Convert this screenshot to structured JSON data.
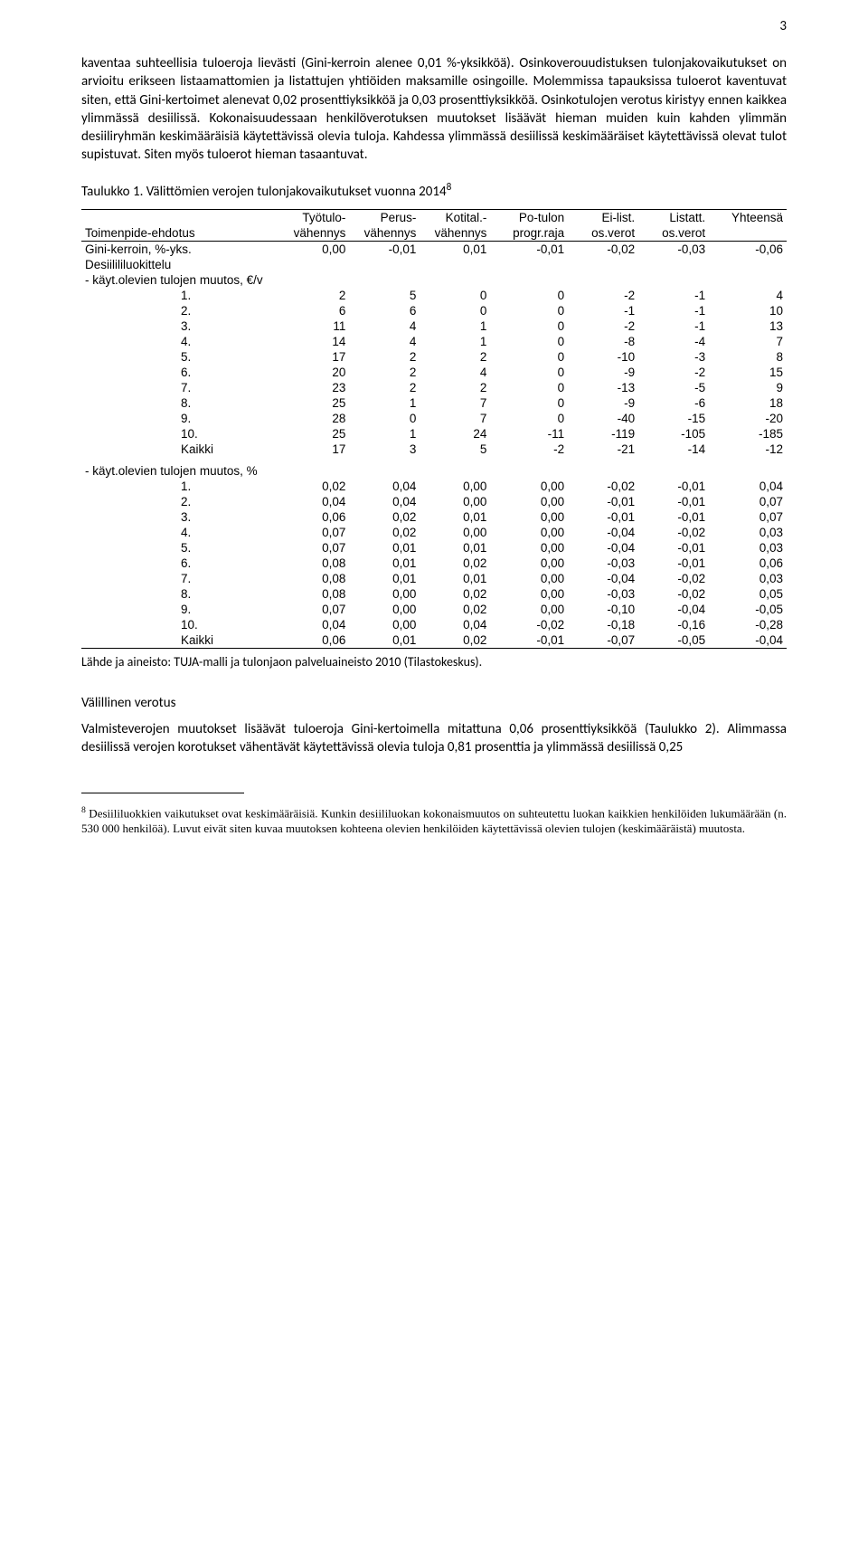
{
  "page_number": "3",
  "para1": "kaventaa suhteellisia tuloeroja lievästi (Gini-kerroin alenee 0,01 %-yksikköä). Osinkoverouudistuksen tulonjakovaikutukset on arvioitu erikseen listaamattomien ja listattujen yhtiöiden maksamille osingoille. Molemmissa tapauksissa tuloerot kaventuvat siten, että Gini-kertoimet alenevat 0,02 prosenttiyksikköä ja 0,03 prosenttiyksikköä. Osinkotulojen verotus kiristyy ennen kaikkea ylimmässä desiilissä. Kokonaisuudessaan henkilöverotuksen muutokset lisäävät hieman muiden kuin kahden ylimmän desiiliryhmän keskimääräisiä käytettävissä olevia tuloja. Kahdessa ylimmässä desiilissä keskimääräiset käytettävissä olevat tulot supistuvat. Siten myös tuloerot hieman tasaantuvat.",
  "table1_title": "Taulukko 1. Välittömien verojen tulonjakovaikutukset vuonna 2014",
  "table1_title_sup": "8",
  "header": {
    "row1": [
      "",
      "Työtulo-",
      "Perus-",
      "Kotital.-",
      "Po-tulon",
      "Ei-list.",
      "Listatt.",
      "Yhteensä"
    ],
    "row2": [
      "Toimenpide-ehdotus",
      "vähennys",
      "vähennys",
      "vähennys",
      "progr.raja",
      "os.verot",
      "os.verot",
      ""
    ]
  },
  "gini_row": [
    "Gini-kerroin, %-yks.",
    "0,00",
    "-0,01",
    "0,01",
    "-0,01",
    "-0,02",
    "-0,03",
    "-0,06"
  ],
  "section_a_label": "Desiilililuokittelu",
  "section_a_sub": " - käyt.olevien tulojen muutos, €/v",
  "rows_a": [
    [
      "1.",
      "2",
      "5",
      "0",
      "0",
      "-2",
      "-1",
      "4"
    ],
    [
      "2.",
      "6",
      "6",
      "0",
      "0",
      "-1",
      "-1",
      "10"
    ],
    [
      "3.",
      "11",
      "4",
      "1",
      "0",
      "-2",
      "-1",
      "13"
    ],
    [
      "4.",
      "14",
      "4",
      "1",
      "0",
      "-8",
      "-4",
      "7"
    ],
    [
      "5.",
      "17",
      "2",
      "2",
      "0",
      "-10",
      "-3",
      "8"
    ],
    [
      "6.",
      "20",
      "2",
      "4",
      "0",
      "-9",
      "-2",
      "15"
    ],
    [
      "7.",
      "23",
      "2",
      "2",
      "0",
      "-13",
      "-5",
      "9"
    ],
    [
      "8.",
      "25",
      "1",
      "7",
      "0",
      "-9",
      "-6",
      "18"
    ],
    [
      "9.",
      "28",
      "0",
      "7",
      "0",
      "-40",
      "-15",
      "-20"
    ],
    [
      "10.",
      "25",
      "1",
      "24",
      "-11",
      "-119",
      "-105",
      "-185"
    ],
    [
      "Kaikki",
      "17",
      "3",
      "5",
      "-2",
      "-21",
      "-14",
      "-12"
    ]
  ],
  "section_b_sub": " - käyt.olevien tulojen muutos, %",
  "rows_b": [
    [
      "1.",
      "0,02",
      "0,04",
      "0,00",
      "0,00",
      "-0,02",
      "-0,01",
      "0,04"
    ],
    [
      "2.",
      "0,04",
      "0,04",
      "0,00",
      "0,00",
      "-0,01",
      "-0,01",
      "0,07"
    ],
    [
      "3.",
      "0,06",
      "0,02",
      "0,01",
      "0,00",
      "-0,01",
      "-0,01",
      "0,07"
    ],
    [
      "4.",
      "0,07",
      "0,02",
      "0,00",
      "0,00",
      "-0,04",
      "-0,02",
      "0,03"
    ],
    [
      "5.",
      "0,07",
      "0,01",
      "0,01",
      "0,00",
      "-0,04",
      "-0,01",
      "0,03"
    ],
    [
      "6.",
      "0,08",
      "0,01",
      "0,02",
      "0,00",
      "-0,03",
      "-0,01",
      "0,06"
    ],
    [
      "7.",
      "0,08",
      "0,01",
      "0,01",
      "0,00",
      "-0,04",
      "-0,02",
      "0,03"
    ],
    [
      "8.",
      "0,08",
      "0,00",
      "0,02",
      "0,00",
      "-0,03",
      "-0,02",
      "0,05"
    ],
    [
      "9.",
      "0,07",
      "0,00",
      "0,02",
      "0,00",
      "-0,10",
      "-0,04",
      "-0,05"
    ],
    [
      "10.",
      "0,04",
      "0,00",
      "0,04",
      "-0,02",
      "-0,18",
      "-0,16",
      "-0,28"
    ],
    [
      "Kaikki",
      "0,06",
      "0,01",
      "0,02",
      "-0,01",
      "-0,07",
      "-0,05",
      "-0,04"
    ]
  ],
  "source_line": "Lähde ja aineisto: TUJA-malli ja tulonjaon palveluaineisto 2010 (Tilastokeskus).",
  "subhead": "Välillinen verotus",
  "para2": "Valmisteverojen muutokset lisäävät tuloeroja Gini-kertoimella mitattuna 0,06 prosenttiyksikköä (Taulukko 2). Alimmassa desiilissä verojen korotukset vähentävät käytettävissä olevia tuloja 0,81 prosenttia ja ylimmässä desiilissä 0,25",
  "footnote_num": "8",
  "footnote": " Desiililuokkien vaikutukset ovat keskimääräisiä. Kunkin desiililuokan kokonaismuutos on suhteutettu luokan kaikkien henkilöiden lukumäärään (n. 530 000 henkilöä). Luvut eivät siten kuvaa muutoksen kohteena olevien henkilöiden käytettävissä olevien tulojen (keskimääräistä) muutosta.",
  "colwidths": [
    "28%",
    "10%",
    "10%",
    "10%",
    "11%",
    "10%",
    "10%",
    "11%"
  ]
}
